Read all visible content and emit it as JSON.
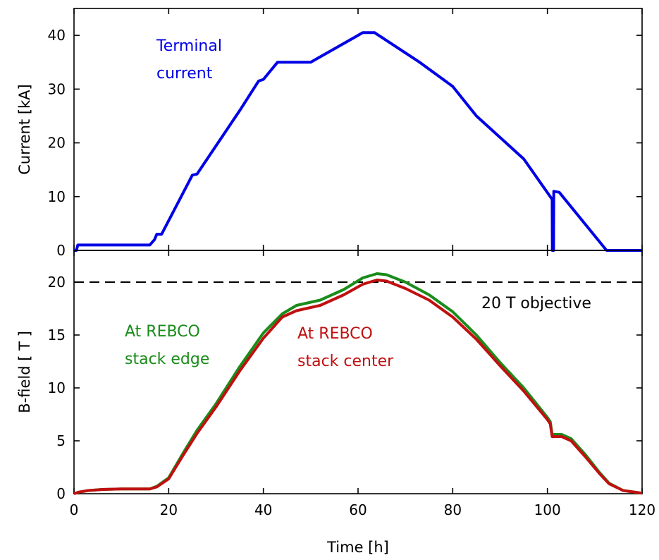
{
  "chart_data": [
    {
      "type": "line",
      "panel": "top",
      "ylabel": "Current [kA]",
      "ylim": [
        0,
        45
      ],
      "yticks": [
        0,
        10,
        20,
        30,
        40
      ],
      "xlim": [
        0,
        120
      ],
      "grid": false,
      "series": [
        {
          "name": "Terminal current",
          "color": "#0000e6",
          "points": [
            [
              0,
              0
            ],
            [
              0.5,
              0
            ],
            [
              0.8,
              1
            ],
            [
              16,
              1
            ],
            [
              17,
              2
            ],
            [
              17.5,
              3
            ],
            [
              18.5,
              3
            ],
            [
              25,
              14
            ],
            [
              26,
              14.2
            ],
            [
              35,
              26
            ],
            [
              39,
              31.5
            ],
            [
              40,
              31.8
            ],
            [
              43,
              35
            ],
            [
              50,
              35
            ],
            [
              61,
              40.5
            ],
            [
              63.5,
              40.5
            ],
            [
              73,
              35
            ],
            [
              80,
              30.5
            ],
            [
              85,
              25
            ],
            [
              95,
              17
            ],
            [
              101,
              9.5
            ],
            [
              101.05,
              0
            ],
            [
              101.3,
              0
            ],
            [
              101.35,
              11
            ],
            [
              102.5,
              10.8
            ],
            [
              112.5,
              0
            ],
            [
              120,
              0
            ]
          ]
        }
      ],
      "annotations": [
        "Terminal",
        "current"
      ]
    },
    {
      "type": "line",
      "panel": "bottom",
      "xlabel": "Time [h]",
      "ylabel": "B-field [ T ]",
      "ylim": [
        0,
        23
      ],
      "yticks": [
        0,
        5,
        10,
        15,
        20
      ],
      "xlim": [
        0,
        120
      ],
      "xticks": [
        0,
        20,
        40,
        60,
        80,
        100,
        120
      ],
      "grid": false,
      "reference_line": {
        "y": 20,
        "label": "20 T objective",
        "style": "dashed"
      },
      "series": [
        {
          "name": "At REBCO stack edge",
          "color": "#1a8c1a",
          "points": [
            [
              0,
              0
            ],
            [
              1,
              0.15
            ],
            [
              3,
              0.3
            ],
            [
              6,
              0.4
            ],
            [
              10,
              0.45
            ],
            [
              16,
              0.45
            ],
            [
              17.5,
              0.7
            ],
            [
              20,
              1.5
            ],
            [
              23,
              3.8
            ],
            [
              26,
              6
            ],
            [
              30,
              8.5
            ],
            [
              35,
              12
            ],
            [
              40,
              15.2
            ],
            [
              44,
              17
            ],
            [
              47,
              17.8
            ],
            [
              52,
              18.3
            ],
            [
              57,
              19.3
            ],
            [
              61,
              20.4
            ],
            [
              64,
              20.8
            ],
            [
              66,
              20.7
            ],
            [
              70,
              20
            ],
            [
              75,
              18.8
            ],
            [
              80,
              17.2
            ],
            [
              85,
              15
            ],
            [
              90,
              12.4
            ],
            [
              95,
              10
            ],
            [
              100,
              7.2
            ],
            [
              100.6,
              6.8
            ],
            [
              101,
              5.6
            ],
            [
              103,
              5.6
            ],
            [
              105,
              5.2
            ],
            [
              108,
              3.7
            ],
            [
              111,
              2
            ],
            [
              113,
              1
            ],
            [
              116,
              0.3
            ],
            [
              120,
              0.05
            ]
          ]
        },
        {
          "name": "At REBCO stack center",
          "color": "#c01010",
          "points": [
            [
              0,
              0
            ],
            [
              1,
              0.15
            ],
            [
              3,
              0.3
            ],
            [
              6,
              0.4
            ],
            [
              10,
              0.45
            ],
            [
              16,
              0.45
            ],
            [
              17.5,
              0.65
            ],
            [
              20,
              1.4
            ],
            [
              23,
              3.6
            ],
            [
              26,
              5.7
            ],
            [
              30,
              8.2
            ],
            [
              35,
              11.6
            ],
            [
              40,
              14.7
            ],
            [
              44,
              16.7
            ],
            [
              47,
              17.3
            ],
            [
              52,
              17.8
            ],
            [
              57,
              18.8
            ],
            [
              61,
              19.8
            ],
            [
              64,
              20.2
            ],
            [
              66,
              20.1
            ],
            [
              70,
              19.4
            ],
            [
              75,
              18.3
            ],
            [
              80,
              16.7
            ],
            [
              85,
              14.6
            ],
            [
              90,
              12.1
            ],
            [
              95,
              9.7
            ],
            [
              100,
              7
            ],
            [
              100.6,
              6.6
            ],
            [
              101,
              5.4
            ],
            [
              103,
              5.4
            ],
            [
              105,
              5
            ],
            [
              108,
              3.5
            ],
            [
              111,
              1.9
            ],
            [
              113,
              0.95
            ],
            [
              116,
              0.3
            ],
            [
              120,
              0.05
            ]
          ]
        }
      ],
      "annotations": [
        {
          "series": "At REBCO stack edge",
          "lines": [
            "At REBCO",
            "stack edge"
          ]
        },
        {
          "series": "At REBCO stack center",
          "lines": [
            "At REBCO",
            "stack center"
          ]
        },
        {
          "lines": [
            "20 T objective"
          ]
        }
      ]
    }
  ]
}
